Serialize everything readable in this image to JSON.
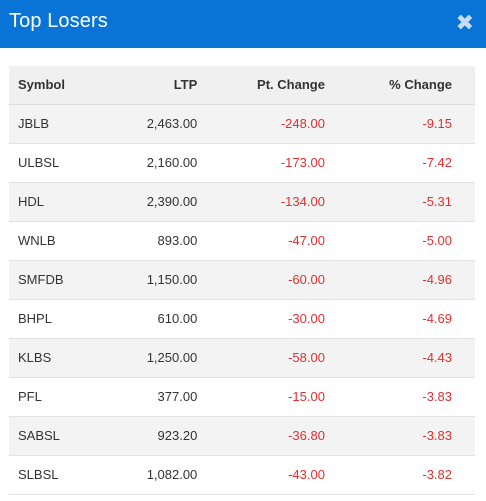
{
  "dialog": {
    "title": "Top Losers",
    "close_label": "✖"
  },
  "table": {
    "headers": [
      "Symbol",
      "LTP",
      "Pt. Change",
      "% Change"
    ],
    "rows": [
      {
        "symbol": "JBLB",
        "ltp": "2,463.00",
        "pt_change": "-248.00",
        "pct_change": "-9.15"
      },
      {
        "symbol": "ULBSL",
        "ltp": "2,160.00",
        "pt_change": "-173.00",
        "pct_change": "-7.42"
      },
      {
        "symbol": "HDL",
        "ltp": "2,390.00",
        "pt_change": "-134.00",
        "pct_change": "-5.31"
      },
      {
        "symbol": "WNLB",
        "ltp": "893.00",
        "pt_change": "-47.00",
        "pct_change": "-5.00"
      },
      {
        "symbol": "SMFDB",
        "ltp": "1,150.00",
        "pt_change": "-60.00",
        "pct_change": "-4.96"
      },
      {
        "symbol": "BHPL",
        "ltp": "610.00",
        "pt_change": "-30.00",
        "pct_change": "-4.69"
      },
      {
        "symbol": "KLBS",
        "ltp": "1,250.00",
        "pt_change": "-58.00",
        "pct_change": "-4.43"
      },
      {
        "symbol": "PFL",
        "ltp": "377.00",
        "pt_change": "-15.00",
        "pct_change": "-3.83"
      },
      {
        "symbol": "SABSL",
        "ltp": "923.20",
        "pt_change": "-36.80",
        "pct_change": "-3.83"
      },
      {
        "symbol": "SLBSL",
        "ltp": "1,082.00",
        "pt_change": "-43.00",
        "pct_change": "-3.82"
      }
    ]
  },
  "colors": {
    "header_bg": "#0a74d6",
    "negative": "#e03030"
  }
}
